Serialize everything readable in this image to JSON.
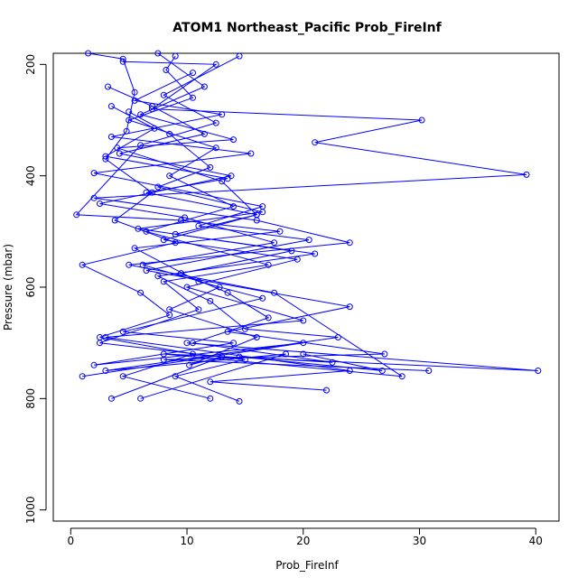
{
  "chart_data": {
    "type": "line",
    "title": "ATOM1 Northeast_Pacific Prob_FireInf",
    "xlabel": "Prob_FireInf",
    "ylabel": "Pressure (mbar)",
    "xlim": [
      -1.5,
      42
    ],
    "ylim": [
      1020,
      180
    ],
    "y_reversed": true,
    "grid": false,
    "legend": "none",
    "x_ticks": [
      0,
      10,
      20,
      30,
      40
    ],
    "y_ticks": [
      200,
      400,
      600,
      800,
      1000
    ],
    "x_tick_labels": [
      "0",
      "10",
      "20",
      "30",
      "40"
    ],
    "y_tick_labels": [
      "200",
      "400",
      "600",
      "800",
      "1000"
    ],
    "color": "#0000ff",
    "series": [
      {
        "x": [
          1.5,
          4.5,
          5.5,
          4.8,
          3.0,
          7.0,
          3.8,
          9.0,
          1.0,
          6.0,
          8.5,
          2.5,
          10.5,
          4.5,
          12.0
        ],
        "y": [
          180,
          190,
          250,
          320,
          370,
          430,
          480,
          520,
          560,
          610,
          650,
          690,
          720,
          760,
          800
        ]
      },
      {
        "x": [
          9.0,
          8.2,
          10.5,
          5.0,
          12.5,
          8.5,
          14.0,
          6.5,
          17.0,
          8.0,
          11.0,
          2.5,
          15.0,
          9.0,
          14.5
        ],
        "y": [
          185,
          210,
          260,
          300,
          350,
          400,
          455,
          500,
          560,
          590,
          640,
          700,
          730,
          760,
          805
        ]
      },
      {
        "x": [
          7.5,
          11.5,
          6.0,
          14.0,
          4.0,
          13.0,
          16.0,
          8.0,
          19.5,
          10.0,
          20.0,
          3.0,
          24.0,
          12.0,
          22.0
        ],
        "y": [
          180,
          240,
          290,
          335,
          350,
          410,
          470,
          515,
          550,
          600,
          660,
          690,
          750,
          770,
          785
        ]
      },
      {
        "x": [
          4.5,
          12.5,
          7.0,
          30.2,
          21.0,
          39.2,
          2.0,
          16.0,
          24.0,
          5.0,
          17.5,
          28.5,
          8.0,
          40.2,
          10.0
        ],
        "y": [
          195,
          200,
          280,
          300,
          340,
          398,
          440,
          480,
          520,
          560,
          610,
          760,
          720,
          750,
          700
        ]
      },
      {
        "x": [
          10.5,
          5.5,
          13.0,
          3.5,
          15.5,
          2.0,
          16.5,
          11.0,
          20.5,
          6.5,
          24.0,
          13.5,
          27.0,
          8.0,
          30.8
        ],
        "y": [
          215,
          265,
          290,
          330,
          360,
          395,
          455,
          490,
          515,
          570,
          635,
          680,
          720,
          730,
          750
        ]
      },
      {
        "x": [
          14.5,
          8.0,
          12.5,
          6.0,
          0.5,
          9.5,
          18.0,
          5.5,
          11.0,
          16.5,
          4.5,
          14.0,
          2.0,
          20.0,
          1.0
        ],
        "y": [
          185,
          255,
          305,
          345,
          470,
          480,
          500,
          530,
          590,
          620,
          680,
          700,
          740,
          700,
          760
        ]
      },
      {
        "x": [
          3.5,
          7.2,
          3.0,
          13.5,
          6.5,
          16.0,
          9.0,
          21.0,
          7.5,
          12.0,
          15.0,
          23.0,
          3.0,
          18.5,
          6.0
        ],
        "y": [
          275,
          315,
          365,
          405,
          430,
          470,
          505,
          540,
          580,
          625,
          675,
          690,
          750,
          720,
          800
        ]
      },
      {
        "x": [
          5.0,
          8.5,
          12.0,
          7.5,
          16.5,
          5.8,
          19.0,
          9.5,
          13.5,
          17.0,
          10.5,
          22.5,
          14.5,
          26.8,
          20.0
        ],
        "y": [
          285,
          325,
          385,
          420,
          465,
          495,
          535,
          575,
          610,
          655,
          700,
          735,
          725,
          750,
          720
        ]
      },
      {
        "x": [
          3.2,
          7.0,
          11.5,
          4.2,
          13.8,
          2.5,
          9.8,
          17.5,
          6.2,
          12.8,
          8.5,
          16.0,
          10.2,
          13.0,
          3.5
        ],
        "y": [
          240,
          275,
          325,
          360,
          400,
          450,
          475,
          520,
          560,
          600,
          640,
          690,
          740,
          725,
          800
        ]
      }
    ]
  }
}
